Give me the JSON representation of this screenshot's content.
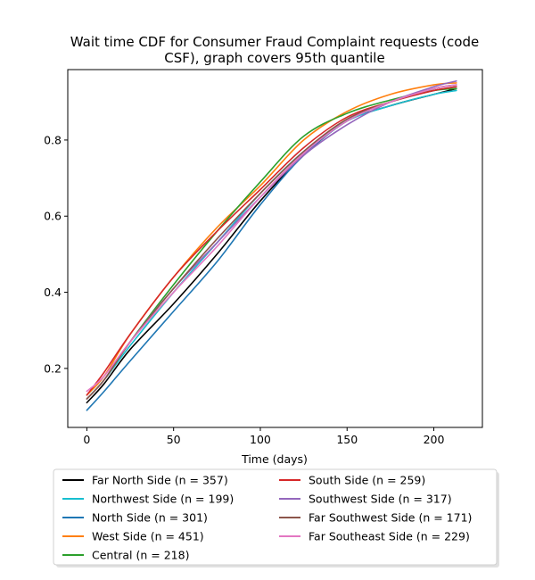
{
  "chart_data": {
    "type": "line",
    "title_lines": [
      "Wait time CDF for Consumer Fraud Complaint  requests (code",
      "CSF), graph covers 95th quantile"
    ],
    "xlabel": "Time (days)",
    "ylabel": "",
    "xlim": [
      -11,
      228
    ],
    "ylim": [
      0.045,
      0.985
    ],
    "x_ticks": [
      0,
      50,
      100,
      150,
      200
    ],
    "y_ticks": [
      0.2,
      0.4,
      0.6,
      0.8
    ],
    "y_tick_labels": [
      "0.2",
      "0.4",
      "0.6",
      "0.8"
    ],
    "grid": false,
    "legend_placement": "below",
    "x": [
      0,
      10,
      25,
      50,
      75,
      100,
      125,
      150,
      175,
      200,
      213
    ],
    "series": [
      {
        "name": "Far North Side (n = 357)",
        "color": "#000000",
        "values": [
          0.11,
          0.16,
          0.25,
          0.37,
          0.5,
          0.64,
          0.76,
          0.85,
          0.89,
          0.92,
          0.935
        ]
      },
      {
        "name": "Northwest Side (n = 199)",
        "color": "#17becf",
        "values": [
          0.12,
          0.17,
          0.26,
          0.4,
          0.53,
          0.66,
          0.77,
          0.85,
          0.89,
          0.92,
          0.93
        ]
      },
      {
        "name": "North Side (n = 301)",
        "color": "#1f77b4",
        "values": [
          0.09,
          0.14,
          0.22,
          0.35,
          0.48,
          0.63,
          0.76,
          0.85,
          0.9,
          0.93,
          0.94
        ]
      },
      {
        "name": "West Side (n = 451)",
        "color": "#ff7f0e",
        "values": [
          0.13,
          0.18,
          0.29,
          0.44,
          0.57,
          0.68,
          0.8,
          0.875,
          0.92,
          0.945,
          0.95
        ]
      },
      {
        "name": "Central (n = 218)",
        "color": "#2ca02c",
        "values": [
          0.12,
          0.17,
          0.27,
          0.42,
          0.56,
          0.69,
          0.81,
          0.87,
          0.905,
          0.93,
          0.935
        ]
      },
      {
        "name": "South Side (n = 259)",
        "color": "#d62728",
        "values": [
          0.13,
          0.19,
          0.29,
          0.44,
          0.56,
          0.67,
          0.78,
          0.86,
          0.9,
          0.93,
          0.94
        ]
      },
      {
        "name": "Southwest Side (n = 317)",
        "color": "#9467bd",
        "values": [
          0.12,
          0.17,
          0.27,
          0.41,
          0.53,
          0.65,
          0.76,
          0.84,
          0.9,
          0.94,
          0.955
        ]
      },
      {
        "name": "Far Southwest Side (n = 171)",
        "color": "#8c564b",
        "values": [
          0.12,
          0.17,
          0.27,
          0.41,
          0.54,
          0.66,
          0.77,
          0.855,
          0.9,
          0.935,
          0.945
        ]
      },
      {
        "name": "Far Southeast Side (n = 229)",
        "color": "#e377c2",
        "values": [
          0.14,
          0.18,
          0.27,
          0.4,
          0.52,
          0.65,
          0.765,
          0.85,
          0.9,
          0.935,
          0.945
        ]
      }
    ]
  }
}
